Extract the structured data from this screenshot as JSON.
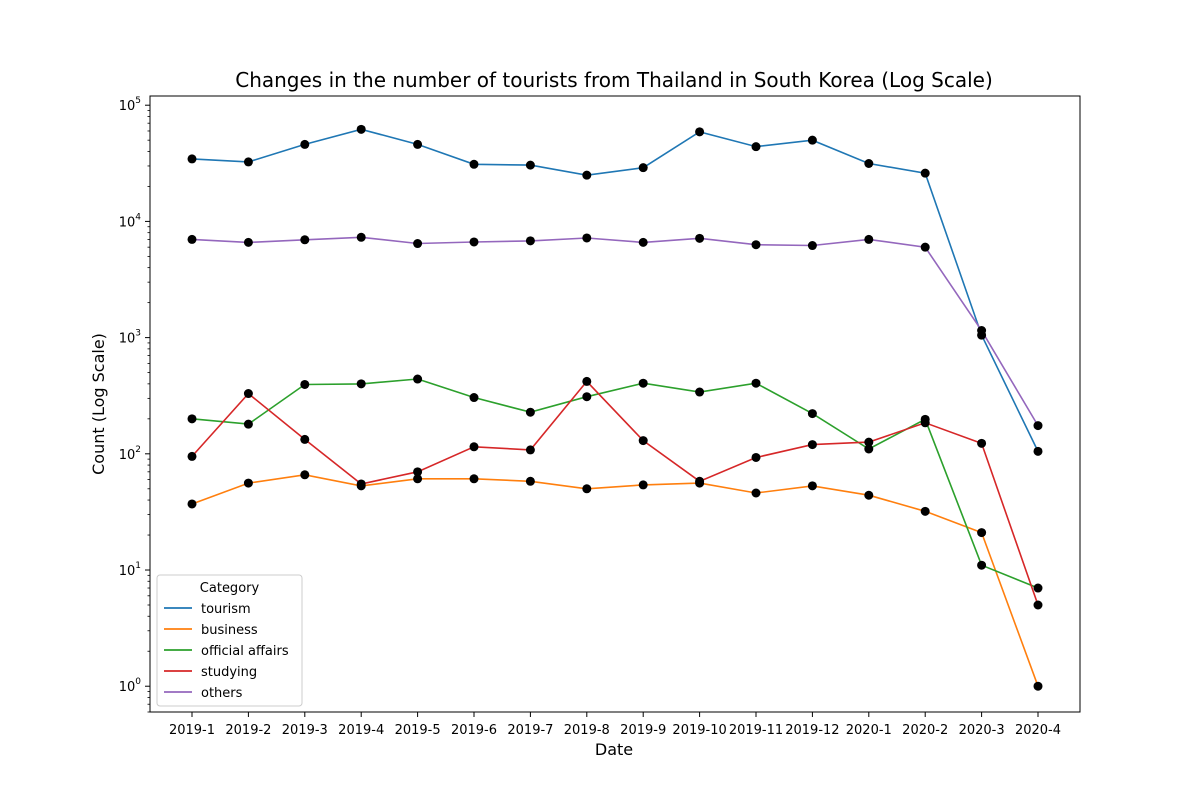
{
  "chart_data": {
    "type": "line",
    "title": "Changes in the number of tourists from Thailand in South Korea (Log Scale)",
    "xlabel": "Date",
    "ylabel": "Count (Log Scale)",
    "yscale": "log",
    "ylim": [
      0.6,
      120000
    ],
    "yticks": [
      {
        "value": 1,
        "base": "10",
        "exp": "0"
      },
      {
        "value": 10,
        "base": "10",
        "exp": "1"
      },
      {
        "value": 100,
        "base": "10",
        "exp": "2"
      },
      {
        "value": 1000,
        "base": "10",
        "exp": "3"
      },
      {
        "value": 10000,
        "base": "10",
        "exp": "4"
      },
      {
        "value": 100000,
        "base": "10",
        "exp": "5"
      }
    ],
    "categories": [
      "2019-1",
      "2019-2",
      "2019-3",
      "2019-4",
      "2019-5",
      "2019-6",
      "2019-7",
      "2019-8",
      "2019-9",
      "2019-10",
      "2019-11",
      "2019-12",
      "2020-1",
      "2020-2",
      "2020-3",
      "2020-4"
    ],
    "legend_title": "Category",
    "legend_position": "lower-left",
    "series": [
      {
        "name": "tourism",
        "color": "#1f77b4",
        "values": [
          34500,
          32500,
          46000,
          62000,
          46000,
          31000,
          30500,
          25000,
          29000,
          59000,
          44000,
          50000,
          31500,
          26000,
          1050,
          105
        ]
      },
      {
        "name": "business",
        "color": "#ff7f0e",
        "values": [
          37,
          56,
          66,
          53,
          61,
          61,
          58,
          50,
          54,
          56,
          46,
          53,
          44,
          32,
          21,
          1
        ]
      },
      {
        "name": "official affairs",
        "color": "#2ca02c",
        "values": [
          200,
          180,
          395,
          400,
          440,
          305,
          228,
          310,
          405,
          340,
          405,
          222,
          110,
          198,
          11,
          7
        ]
      },
      {
        "name": "studying",
        "color": "#d62728",
        "values": [
          95,
          330,
          133,
          55,
          70,
          115,
          108,
          420,
          130,
          58,
          93,
          120,
          126,
          185,
          123,
          5
        ]
      },
      {
        "name": "others",
        "color": "#9467bd",
        "values": [
          7000,
          6600,
          6950,
          7300,
          6450,
          6650,
          6800,
          7200,
          6600,
          7150,
          6300,
          6200,
          7000,
          6000,
          1150,
          175
        ]
      }
    ]
  }
}
